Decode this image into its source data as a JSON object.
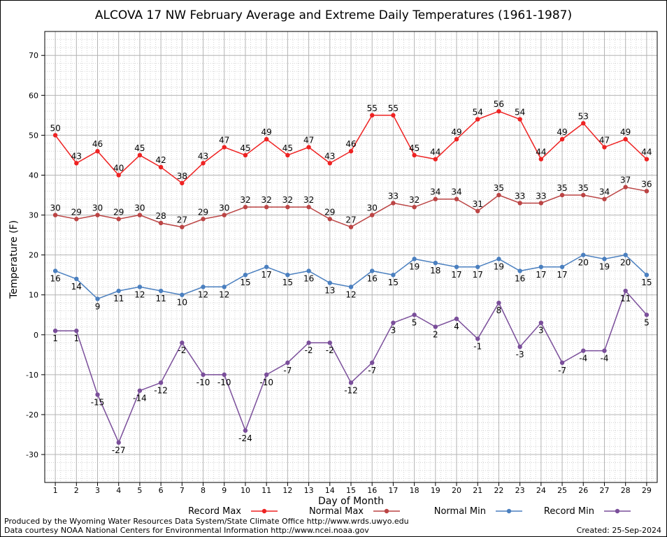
{
  "chart_data": {
    "type": "line",
    "title": "ALCOVA 17 NW February Average and Extreme Daily Temperatures (1961-1987)",
    "xlabel": "Day of Month",
    "ylabel": "Temperature (F)",
    "xlim": [
      0.5,
      29.5
    ],
    "ylim": [
      -37,
      76
    ],
    "yticks": [
      -30,
      -20,
      -10,
      0,
      10,
      20,
      30,
      40,
      50,
      60,
      70
    ],
    "x": [
      1,
      2,
      3,
      4,
      5,
      6,
      7,
      8,
      9,
      10,
      11,
      12,
      13,
      14,
      15,
      16,
      17,
      18,
      19,
      20,
      21,
      22,
      23,
      24,
      25,
      26,
      27,
      28,
      29
    ],
    "grid": true,
    "legend_position": "bottom",
    "series": [
      {
        "name": "Record Max",
        "color": "#ee2222",
        "label_pos": "above",
        "values": [
          50,
          43,
          46,
          40,
          45,
          42,
          38,
          43,
          47,
          45,
          49,
          45,
          47,
          43,
          46,
          55,
          55,
          45,
          44,
          49,
          54,
          56,
          54,
          44,
          49,
          53,
          47,
          49,
          44
        ]
      },
      {
        "name": "Normal Max",
        "color": "#bb4444",
        "label_pos": "above",
        "values": [
          30,
          29,
          30,
          29,
          30,
          28,
          27,
          29,
          30,
          32,
          32,
          32,
          32,
          29,
          27,
          30,
          33,
          32,
          34,
          34,
          31,
          35,
          33,
          33,
          35,
          35,
          34,
          37,
          36
        ]
      },
      {
        "name": "Normal Min",
        "color": "#4a7fbf",
        "label_pos": "below",
        "values": [
          16,
          14,
          9,
          11,
          12,
          11,
          10,
          12,
          12,
          15,
          17,
          15,
          16,
          13,
          12,
          16,
          15,
          19,
          18,
          17,
          17,
          19,
          16,
          17,
          17,
          20,
          19,
          20,
          15
        ]
      },
      {
        "name": "Record Min",
        "color": "#7a4e9a",
        "label_pos": "below",
        "values": [
          1,
          1,
          -15,
          -27,
          -14,
          -12,
          -2,
          -10,
          -10,
          -24,
          -10,
          -7,
          -2,
          -2,
          -12,
          -7,
          3,
          5,
          2,
          4,
          -1,
          8,
          -3,
          3,
          -7,
          -4,
          -4,
          11,
          5
        ]
      }
    ]
  },
  "footer": {
    "line1": "Produced by the Wyoming Water Resources Data System/State Climate Office http://www.wrds.uwyo.edu",
    "line2": "Data courtesy NOAA National Centers for Environmental Information http://www.ncei.noaa.gov",
    "created": "Created:  25-Sep-2024"
  }
}
